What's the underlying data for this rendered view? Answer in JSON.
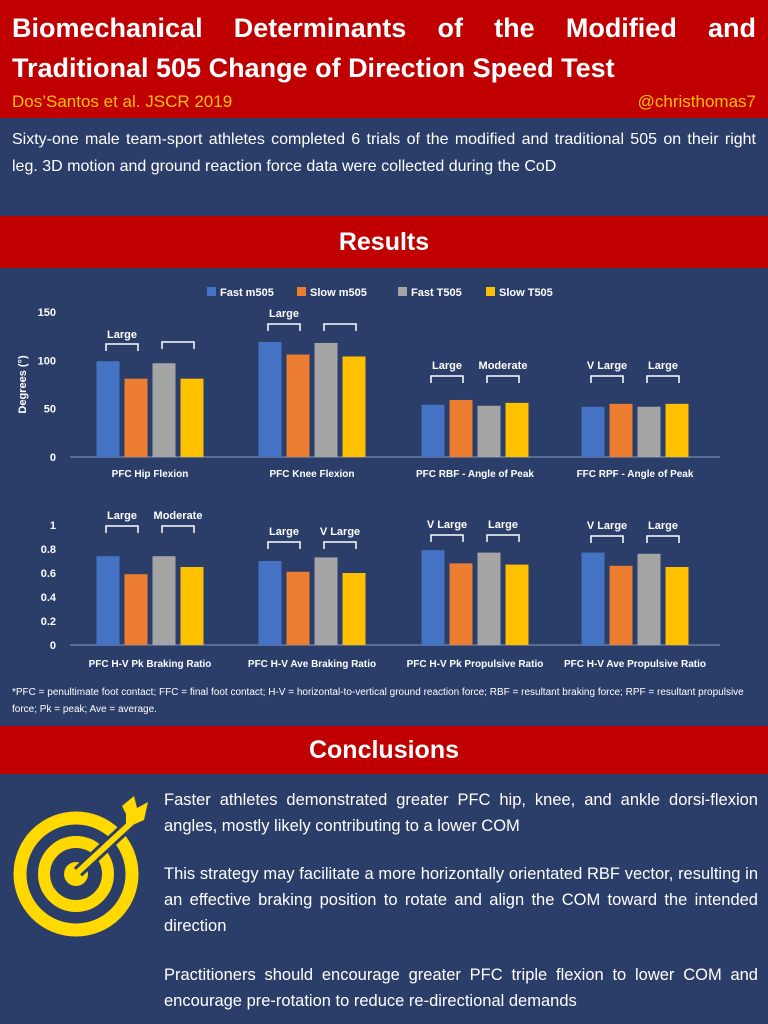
{
  "header": {
    "title_line1": "Biomechanical Determinants of the Modified and",
    "title_line2": "Traditional 505 Change of Direction Speed Test",
    "citation": "Dos’Santos et al. JSCR 2019",
    "handle": "@christhomas7"
  },
  "intro": "Sixty-one male team-sport athletes completed 6 trials of the modified and traditional 505 on their right leg. 3D motion and ground reaction force data were collected during the CoD",
  "results_heading": "Results",
  "colors": {
    "fast_m505": "#4472c4",
    "slow_m505": "#ed7d31",
    "fast_t505": "#a5a5a5",
    "slow_t505": "#ffc000",
    "banner": "#c00000",
    "background": "#2b3d69"
  },
  "chart_data": [
    {
      "type": "bar",
      "ylabel": "Degrees (°)",
      "ylim": [
        0,
        150
      ],
      "yticks": [
        "0",
        "50",
        "100",
        "150"
      ],
      "legend": [
        "Fast m505",
        "Slow m505",
        "Fast T505",
        "Slow T505"
      ],
      "categories": [
        "PFC Hip Flexion",
        "PFC Knee Flexion",
        "PFC RBF - Angle of Peak",
        "FFC RPF - Angle of Peak"
      ],
      "series": [
        {
          "name": "Fast m505",
          "values": [
            99,
            119,
            54,
            52
          ]
        },
        {
          "name": "Slow m505",
          "values": [
            81,
            106,
            59,
            55
          ]
        },
        {
          "name": "Fast T505",
          "values": [
            97,
            118,
            53,
            52
          ]
        },
        {
          "name": "Slow T505",
          "values": [
            81,
            104,
            56,
            55
          ]
        }
      ],
      "annotations": [
        [
          "Large",
          ""
        ],
        [
          "Large",
          ""
        ],
        [
          "Large",
          "Moderate"
        ],
        [
          "V Large",
          "Large"
        ]
      ]
    },
    {
      "type": "bar",
      "ylabel": "",
      "ylim": [
        0,
        1
      ],
      "yticks": [
        "0",
        "0.2",
        "0.4",
        "0.6",
        "0.8",
        "1"
      ],
      "categories": [
        "PFC H-V Pk Braking Ratio",
        "PFC H-V Ave Braking Ratio",
        "PFC H-V Pk Propulsive Ratio",
        "PFC H-V Ave Propulsive Ratio"
      ],
      "series": [
        {
          "name": "Fast m505",
          "values": [
            0.74,
            0.7,
            0.79,
            0.77
          ]
        },
        {
          "name": "Slow m505",
          "values": [
            0.59,
            0.61,
            0.68,
            0.66
          ]
        },
        {
          "name": "Fast T505",
          "values": [
            0.74,
            0.73,
            0.77,
            0.76
          ]
        },
        {
          "name": "Slow T505",
          "values": [
            0.65,
            0.6,
            0.67,
            0.65
          ]
        }
      ],
      "annotations": [
        [
          "Large",
          "Moderate"
        ],
        [
          "Large",
          "V Large"
        ],
        [
          "V Large",
          "Large"
        ],
        [
          "V Large",
          "Large"
        ]
      ]
    }
  ],
  "footnote": "*PFC = penultimate foot contact; FFC = final foot contact; H-V = horizontal-to-vertical ground reaction force; RBF = resultant braking force; RPF = resultant propulsive force; Pk = peak; Ave = average.",
  "conclusions_heading": "Conclusions",
  "conclusions": [
    "Faster athletes demonstrated greater PFC hip, knee, and ankle dorsi-flexion angles, mostly likely contributing to a lower COM",
    "This strategy may facilitate a more horizontally orientated RBF vector, resulting in an effective braking position to rotate and align the COM toward the intended direction",
    "Practitioners should encourage greater PFC triple flexion to lower COM and encourage pre-rotation to reduce re-directional demands"
  ],
  "icon": "target-icon"
}
